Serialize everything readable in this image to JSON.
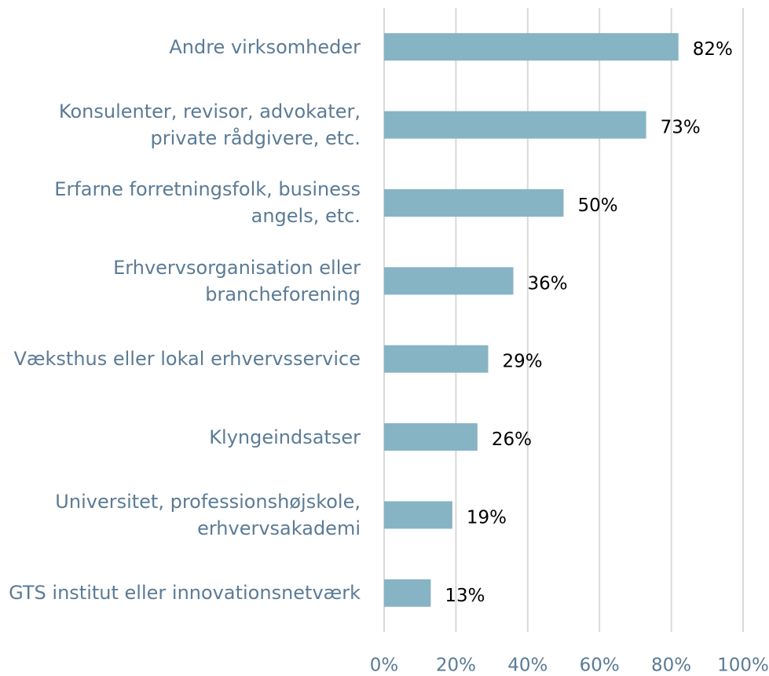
{
  "chart_data": {
    "type": "barh",
    "categories": [
      "Andre virksomheder",
      "Konsulenter, revisor, advokater, private rådgivere, etc.",
      "Erfarne forretningsfolk, business angels, etc.",
      "Erhvervsorganisation eller brancheforening",
      "Væksthus eller lokal erhvervsservice",
      "Klyngeindsatser",
      "Universitet, professionshøjskole, erhvervsakademi",
      "GTS institut eller innovationsnetværk"
    ],
    "values": [
      82,
      73,
      50,
      36,
      29,
      26,
      19,
      13
    ],
    "value_labels": [
      "82%",
      "73%",
      "50%",
      "36%",
      "29%",
      "26%",
      "19%",
      "13%"
    ],
    "color": "#86b4c4",
    "xlim": [
      0,
      100
    ],
    "xticks": [
      {
        "value": 0,
        "label": "0%"
      },
      {
        "value": 20,
        "label": "20%"
      },
      {
        "value": 40,
        "label": "40%"
      },
      {
        "value": 60,
        "label": "60%"
      },
      {
        "value": 80,
        "label": "80%"
      },
      {
        "value": 100,
        "label": "100%"
      }
    ],
    "grid": true
  }
}
